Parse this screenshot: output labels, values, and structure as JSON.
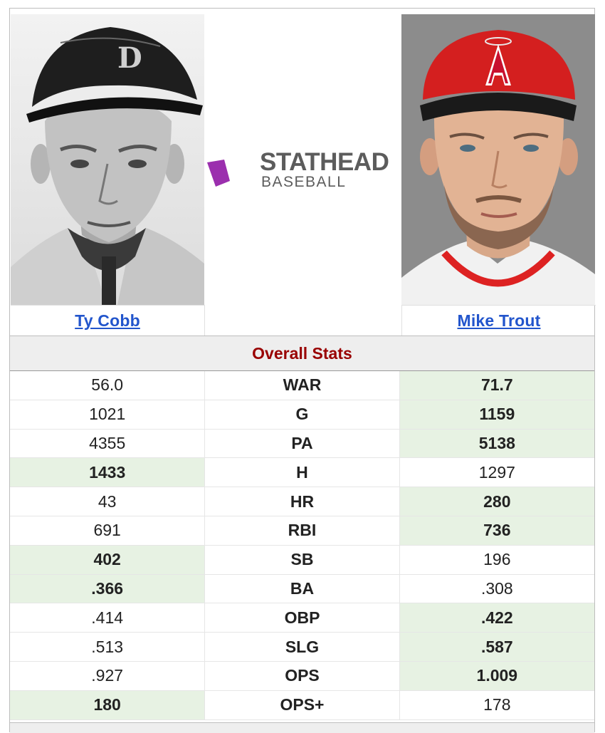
{
  "players": {
    "left": {
      "name": "Ty Cobb",
      "photo_icon": "ty-cobb-portrait"
    },
    "right": {
      "name": "Mike Trout",
      "photo_icon": "mike-trout-portrait"
    }
  },
  "logo": {
    "line1": "STATHEAD",
    "line2": "BASEBALL",
    "accent": "#9b2fae"
  },
  "section_title": "Overall Stats",
  "colors": {
    "win_bg": "#e7f2e3",
    "link": "#2255cc",
    "section_title": "#990000"
  },
  "stats": [
    {
      "stat": "WAR",
      "left": "56.0",
      "right": "71.7",
      "winner": "right"
    },
    {
      "stat": "G",
      "left": "1021",
      "right": "1159",
      "winner": "right"
    },
    {
      "stat": "PA",
      "left": "4355",
      "right": "5138",
      "winner": "right"
    },
    {
      "stat": "H",
      "left": "1433",
      "right": "1297",
      "winner": "left"
    },
    {
      "stat": "HR",
      "left": "43",
      "right": "280",
      "winner": "right"
    },
    {
      "stat": "RBI",
      "left": "691",
      "right": "736",
      "winner": "right"
    },
    {
      "stat": "SB",
      "left": "402",
      "right": "196",
      "winner": "left"
    },
    {
      "stat": "BA",
      "left": ".366",
      "right": ".308",
      "winner": "left"
    },
    {
      "stat": "OBP",
      "left": ".414",
      "right": ".422",
      "winner": "right"
    },
    {
      "stat": "SLG",
      "left": ".513",
      "right": ".587",
      "winner": "right"
    },
    {
      "stat": "OPS",
      "left": ".927",
      "right": "1.009",
      "winner": "right"
    },
    {
      "stat": "OPS+",
      "left": "180",
      "right": "178",
      "winner": "left"
    }
  ]
}
